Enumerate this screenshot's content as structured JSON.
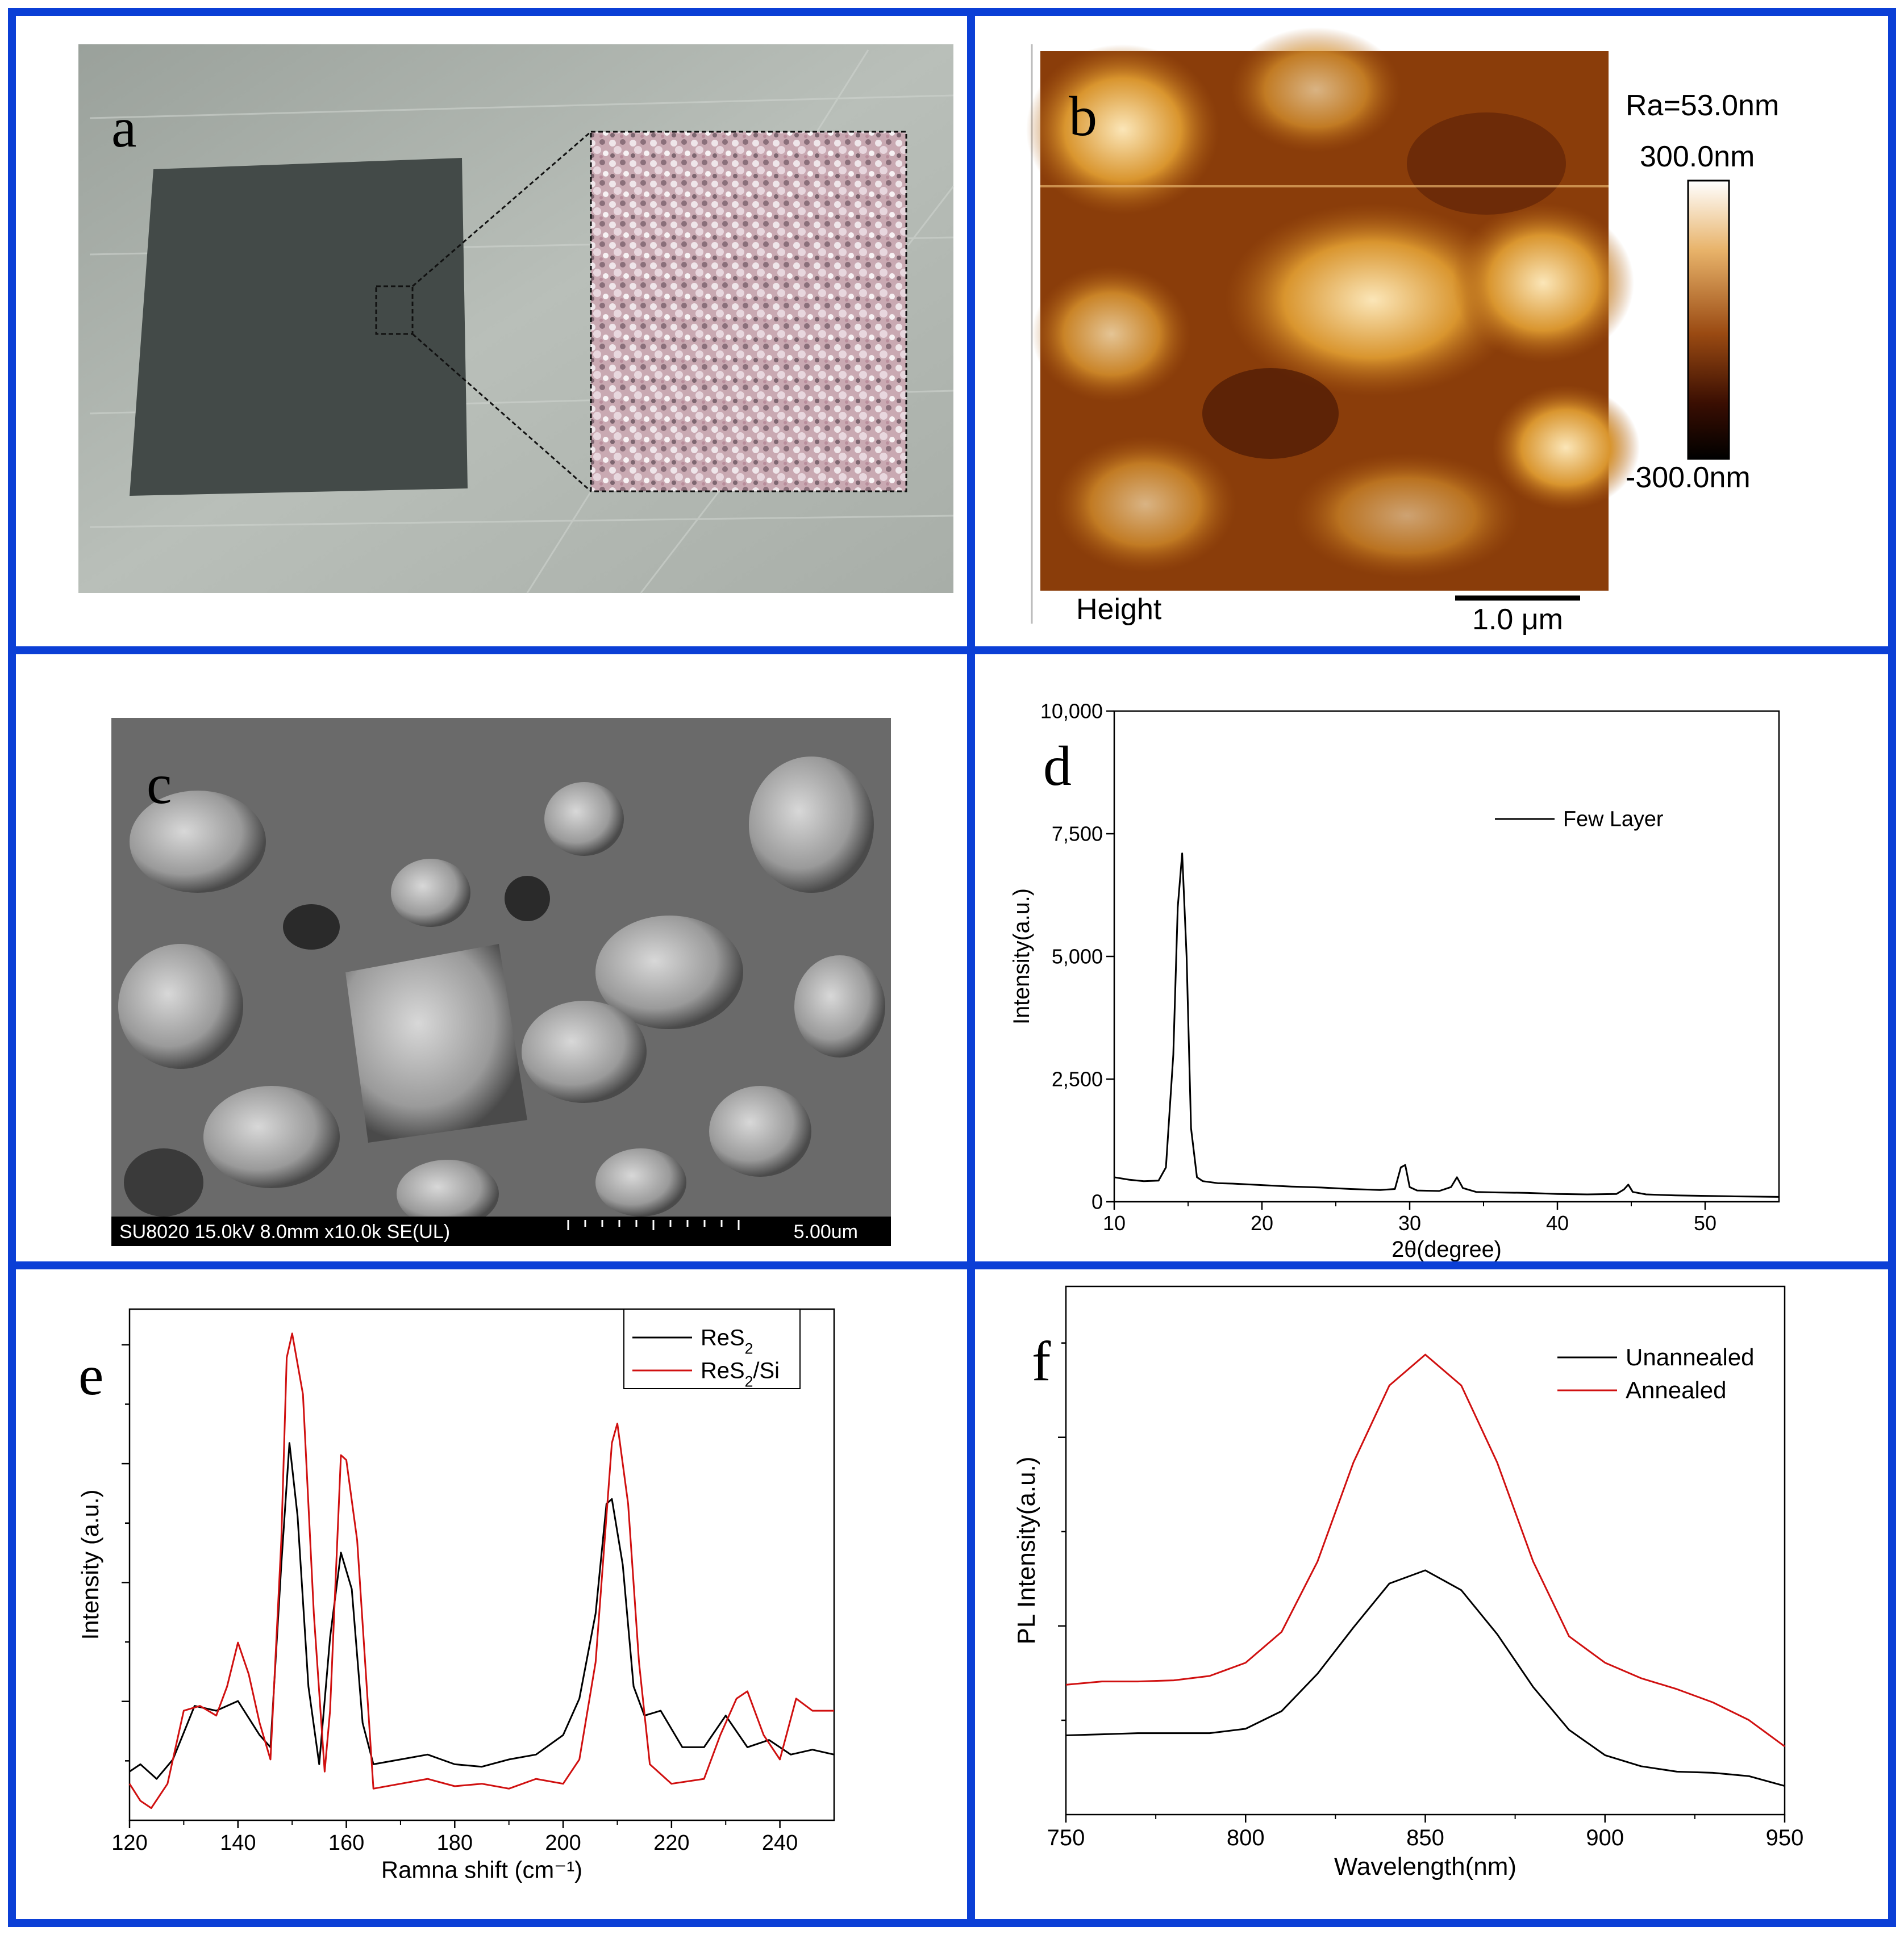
{
  "panels": {
    "a": {
      "letter": "a"
    },
    "b": {
      "letter": "b",
      "ra": "Ra=53.0nm",
      "scale_max": "300.0nm",
      "scale_min": "-300.0nm",
      "height_label": "Height",
      "scalebar_label": "1.0 μm"
    },
    "c": {
      "letter": "c",
      "footer_left": "SU8020 15.0kV 8.0mm x10.0k SE(UL)",
      "footer_right": "5.00um"
    },
    "d": {
      "letter": "d"
    },
    "e": {
      "letter": "e"
    },
    "f": {
      "letter": "f"
    }
  },
  "chart_data": [
    {
      "id": "d",
      "type": "line",
      "xlabel": "2θ(degree)",
      "ylabel": "Intensity(a.u.)",
      "xlim": [
        10,
        55
      ],
      "ylim": [
        0,
        10000
      ],
      "xticks": [
        "10",
        "20",
        "30",
        "40",
        "50"
      ],
      "yticks": [
        "0",
        "2,500",
        "5,000",
        "7,500",
        "10,000"
      ],
      "legend": "top-right",
      "series": [
        {
          "name": "Few Layer",
          "color": "#000000",
          "x": [
            10,
            11,
            12,
            13,
            13.5,
            14,
            14.3,
            14.6,
            14.9,
            15.2,
            15.6,
            16,
            17,
            18,
            20,
            22,
            24,
            26,
            28,
            29,
            29.4,
            29.7,
            30,
            30.5,
            32,
            32.8,
            33.2,
            33.6,
            34.5,
            36,
            38,
            40,
            42,
            44,
            44.5,
            44.8,
            45.1,
            46,
            48,
            50,
            52,
            55
          ],
          "y": [
            500,
            450,
            420,
            430,
            700,
            3000,
            6000,
            7100,
            5000,
            1500,
            500,
            420,
            380,
            370,
            340,
            310,
            290,
            260,
            240,
            260,
            700,
            750,
            300,
            230,
            220,
            300,
            500,
            280,
            200,
            190,
            180,
            160,
            150,
            160,
            250,
            350,
            200,
            150,
            130,
            120,
            110,
            100
          ]
        }
      ]
    },
    {
      "id": "e",
      "type": "line",
      "xlabel": "Ramna shift (cm⁻¹)",
      "ylabel": "Intensity (a.u.)",
      "xlim": [
        120,
        250
      ],
      "xticks": [
        "120",
        "140",
        "160",
        "180",
        "200",
        "220",
        "240"
      ],
      "legend": "top-right",
      "series": [
        {
          "name": "ReS2",
          "color": "#000000",
          "x": [
            120,
            122,
            125,
            128,
            132,
            136,
            140,
            144,
            146,
            148,
            149.5,
            151,
            153,
            155,
            157,
            159,
            161,
            163,
            165,
            170,
            175,
            180,
            185,
            190,
            195,
            200,
            203,
            206,
            208,
            209,
            211,
            213,
            215,
            218,
            222,
            226,
            230,
            234,
            238,
            242,
            246,
            250
          ],
          "y": [
            15,
            18,
            12,
            20,
            42,
            40,
            44,
            30,
            25,
            100,
            150,
            120,
            50,
            18,
            70,
            105,
            90,
            35,
            18,
            20,
            22,
            18,
            17,
            20,
            22,
            30,
            45,
            80,
            125,
            127,
            100,
            50,
            38,
            40,
            25,
            25,
            38,
            25,
            28,
            22,
            24,
            22
          ]
        },
        {
          "name": "ReS2/Si",
          "color": "#d01010",
          "x": [
            120,
            122,
            124,
            127,
            130,
            133,
            136,
            138,
            140,
            142,
            144,
            146,
            148,
            149,
            150,
            152,
            154,
            156,
            157,
            159,
            160,
            162,
            165,
            170,
            175,
            180,
            185,
            190,
            195,
            200,
            203,
            206,
            209,
            210,
            212,
            214,
            216,
            220,
            226,
            229,
            232,
            234,
            237,
            240,
            243,
            246,
            250
          ],
          "y": [
            10,
            3,
            0,
            10,
            40,
            42,
            38,
            50,
            68,
            55,
            35,
            20,
            110,
            185,
            195,
            170,
            80,
            15,
            40,
            145,
            143,
            110,
            8,
            10,
            12,
            9,
            10,
            8,
            12,
            10,
            20,
            60,
            150,
            158,
            125,
            60,
            18,
            10,
            12,
            30,
            45,
            48,
            30,
            20,
            45,
            40,
            40
          ]
        }
      ]
    },
    {
      "id": "f",
      "type": "line",
      "xlabel": "Wavelength(nm)",
      "ylabel": "PL Intensity(a.u.)",
      "xlim": [
        750,
        950
      ],
      "xticks": [
        "750",
        "800",
        "850",
        "900",
        "950"
      ],
      "legend": "top-right",
      "series": [
        {
          "name": "Unannealed",
          "color": "#000000",
          "x": [
            750,
            760,
            770,
            780,
            790,
            800,
            810,
            820,
            830,
            840,
            850,
            860,
            870,
            880,
            890,
            900,
            910,
            920,
            930,
            940,
            950
          ],
          "y": [
            2.92,
            2.93,
            2.94,
            2.94,
            2.94,
            2.98,
            3.14,
            3.48,
            3.9,
            4.3,
            4.42,
            4.24,
            3.84,
            3.36,
            2.97,
            2.74,
            2.64,
            2.59,
            2.58,
            2.55,
            2.46
          ]
        },
        {
          "name": "Annealed",
          "color": "#d01010",
          "x": [
            750,
            760,
            770,
            780,
            790,
            800,
            810,
            820,
            830,
            840,
            850,
            860,
            870,
            880,
            890,
            900,
            910,
            920,
            930,
            940,
            950
          ],
          "y": [
            3.38,
            3.41,
            3.41,
            3.42,
            3.46,
            3.58,
            3.86,
            4.5,
            5.4,
            6.1,
            6.38,
            6.1,
            5.4,
            4.5,
            3.82,
            3.58,
            3.44,
            3.34,
            3.22,
            3.06,
            2.82
          ]
        }
      ]
    }
  ]
}
